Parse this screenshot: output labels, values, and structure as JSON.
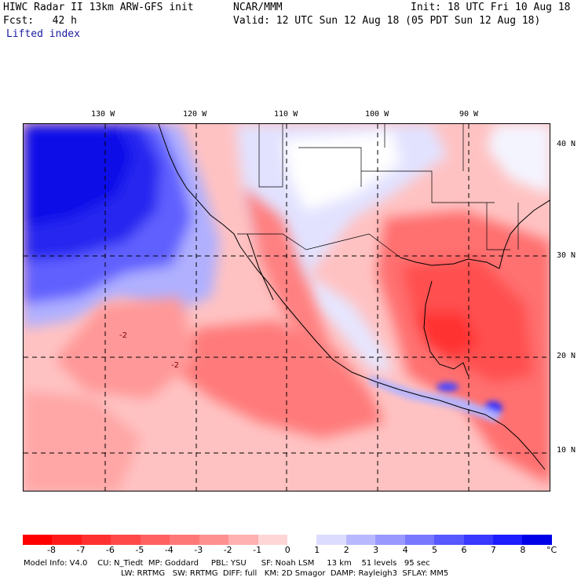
{
  "header": {
    "line1_left": "HIWC Radar II 13km ARW-GFS init",
    "line1_center": "NCAR/MMM",
    "line1_right": "Init: 18 UTC Fri 10 Aug 18",
    "fcst": "Fcst:   42 h",
    "valid": "Valid: 12 UTC Sun 12 Aug 18 (05 PDT Sun 12 Aug 18)",
    "field": "Lifted index"
  },
  "map": {
    "top_ticks": [
      "130 W",
      "120 W",
      "110 W",
      "100 W",
      "90 W"
    ],
    "right_ticks": [
      "40 N",
      "30 N",
      "20 N",
      "10 N"
    ],
    "contour_labels": [
      "-2",
      "-2"
    ]
  },
  "colorbar": {
    "labels": [
      "-8",
      "-7",
      "-6",
      "-5",
      "-4",
      "-3",
      "-2",
      "-1",
      "0",
      "1",
      "2",
      "3",
      "4",
      "5",
      "6",
      "7",
      "8"
    ],
    "unit": "°C",
    "colors": [
      "#ff0000",
      "#ff1a1a",
      "#ff3030",
      "#ff4848",
      "#ff6060",
      "#ff7878",
      "#ff9090",
      "#ffb0b0",
      "#ffd6d6",
      "#ffffff",
      "#dcdcff",
      "#b8b8ff",
      "#9898ff",
      "#7878ff",
      "#5858ff",
      "#3838ff",
      "#1c1cff",
      "#0000e8"
    ]
  },
  "footer": {
    "line1": "Model Info: V4.0    CU: N_Tiedt  MP: Goddard     PBL: YSU      SF: Noah LSM     13 km    51 levels   95 sec",
    "line2": "LW: RRTMG   SW: RRTMG  DIFF: full   KM: 2D Smagor  DAMP: Rayleigh3  SFLAY: MM5"
  }
}
